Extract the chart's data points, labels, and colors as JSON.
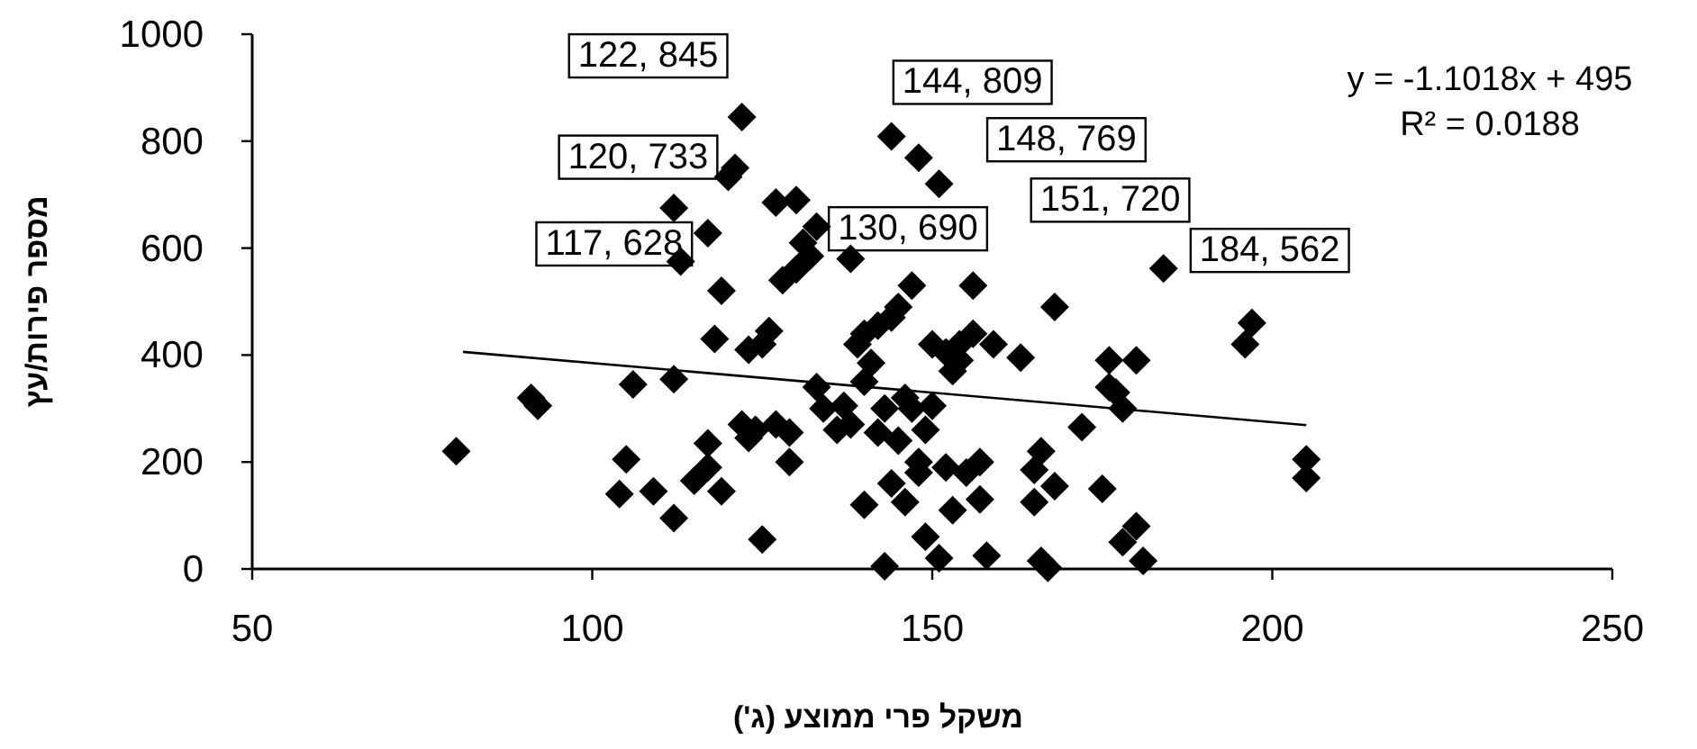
{
  "chart_data": {
    "type": "scatter",
    "xlabel": "משקל פרי ממוצע (ג')",
    "ylabel": "מספר פירות/עץ",
    "xlim": [
      50,
      250
    ],
    "xticks": [
      50,
      100,
      150,
      200,
      250
    ],
    "ylim": [
      0,
      1000
    ],
    "yticks": [
      0,
      200,
      400,
      600,
      800,
      1000
    ],
    "grid": false,
    "series": [
      {
        "type": "scatter",
        "color": "#000000",
        "marker": "diamond",
        "x": [
          80,
          91,
          92,
          104,
          105,
          106,
          109,
          112,
          112,
          113,
          112,
          115,
          117,
          117,
          118,
          119,
          119,
          121,
          122,
          122,
          123,
          124,
          123,
          125,
          125,
          126,
          127,
          127,
          129,
          129,
          128,
          120,
          130,
          131,
          132,
          133,
          133,
          134,
          136,
          137,
          138,
          138,
          139,
          140,
          140,
          140,
          141,
          130,
          142,
          142,
          143,
          143,
          144,
          144,
          144,
          145,
          145,
          146,
          146,
          147,
          147,
          148,
          148,
          148,
          149,
          149,
          150,
          150,
          151,
          151,
          152,
          152,
          153,
          153,
          154,
          154,
          155,
          156,
          156,
          157,
          157,
          158,
          159,
          163,
          165,
          165,
          166,
          166,
          167,
          168,
          168,
          172,
          175,
          176,
          176,
          177,
          178,
          178,
          180,
          180,
          181,
          184,
          196,
          197,
          205,
          205,
          117
        ],
        "values": [
          220,
          320,
          305,
          140,
          205,
          345,
          145,
          95,
          355,
          575,
          675,
          165,
          190,
          235,
          430,
          520,
          145,
          750,
          845,
          270,
          410,
          260,
          245,
          55,
          420,
          445,
          685,
          270,
          255,
          200,
          540,
          733,
          560,
          610,
          585,
          640,
          340,
          300,
          260,
          305,
          270,
          580,
          420,
          440,
          350,
          120,
          385,
          690,
          255,
          455,
          5,
          300,
          809,
          160,
          470,
          240,
          490,
          125,
          320,
          530,
          300,
          769,
          180,
          200,
          60,
          260,
          420,
          305,
          720,
          20,
          190,
          405,
          110,
          370,
          420,
          390,
          180,
          530,
          440,
          130,
          200,
          25,
          420,
          395,
          125,
          185,
          220,
          15,
          2,
          490,
          155,
          265,
          150,
          340,
          390,
          330,
          300,
          50,
          390,
          80,
          15,
          562,
          420,
          460,
          170,
          205,
          628
        ]
      },
      {
        "type": "line",
        "color": "#000000",
        "x": [
          81,
          205
        ],
        "values": [
          406,
          269
        ]
      }
    ],
    "annotations": [
      {
        "text": "122, 845",
        "x": 122,
        "y": 845
      },
      {
        "text": "144, 809",
        "x": 144,
        "y": 809
      },
      {
        "text": "148, 769",
        "x": 148,
        "y": 769
      },
      {
        "text": "151, 720",
        "x": 151,
        "y": 720
      },
      {
        "text": "120, 733",
        "x": 120,
        "y": 733
      },
      {
        "text": "117, 628",
        "x": 117,
        "y": 628
      },
      {
        "text": "130, 690",
        "x": 130,
        "y": 690
      },
      {
        "text": "184, 562",
        "x": 184,
        "y": 562
      },
      "y = -1.1018x + 495",
      "R² = 0.0188"
    ]
  }
}
